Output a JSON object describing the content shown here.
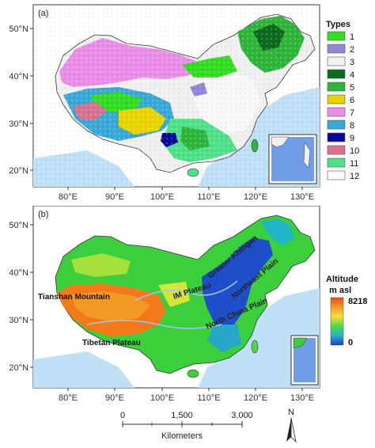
{
  "panel_a": {
    "tag": "(a)",
    "legend_title": "Types",
    "types": [
      {
        "label": "1",
        "color": "#33dd22"
      },
      {
        "label": "2",
        "color": "#8f86d6"
      },
      {
        "label": "3",
        "color": "#f2f2f2"
      },
      {
        "label": "4",
        "color": "#0b6a1e"
      },
      {
        "label": "5",
        "color": "#2fb53a"
      },
      {
        "label": "6",
        "color": "#e8d400"
      },
      {
        "label": "7",
        "color": "#e98de8"
      },
      {
        "label": "8",
        "color": "#37a8d8"
      },
      {
        "label": "9",
        "color": "#0a0a9a"
      },
      {
        "label": "10",
        "color": "#d9728f"
      },
      {
        "label": "11",
        "color": "#4fe08a"
      },
      {
        "label": "12",
        "color": "#fbfbfb"
      }
    ]
  },
  "panel_b": {
    "tag": "(b)",
    "legend_title": "Altitude",
    "legend_unit": "m asl",
    "legend_max": "8218",
    "legend_min": "0",
    "places": {
      "tianshan": "Tianshan Mountain",
      "tibetan": "Tibetan Plateau",
      "im": "IM Plateau",
      "greater_khingan": "Greater Khingan",
      "northeast": "Northeast Plain",
      "north_china": "North China Plain"
    }
  },
  "axes": {
    "lat_labels": [
      "50°N",
      "40°N",
      "30°N",
      "20°N"
    ],
    "lon_labels": [
      "80°E",
      "90°E",
      "100°E",
      "110°E",
      "120°E",
      "130°E"
    ]
  },
  "scale_bar": {
    "ticks": [
      "0",
      "1,500",
      "3,000"
    ],
    "unit": "Kilometers",
    "north": "N"
  },
  "colors": {
    "sea": "#bfe0f7",
    "frame": "#333333",
    "elev_high": "#f27a1a",
    "elev_mid": "#3ccf3c",
    "elev_low": "#1f4fc8"
  }
}
